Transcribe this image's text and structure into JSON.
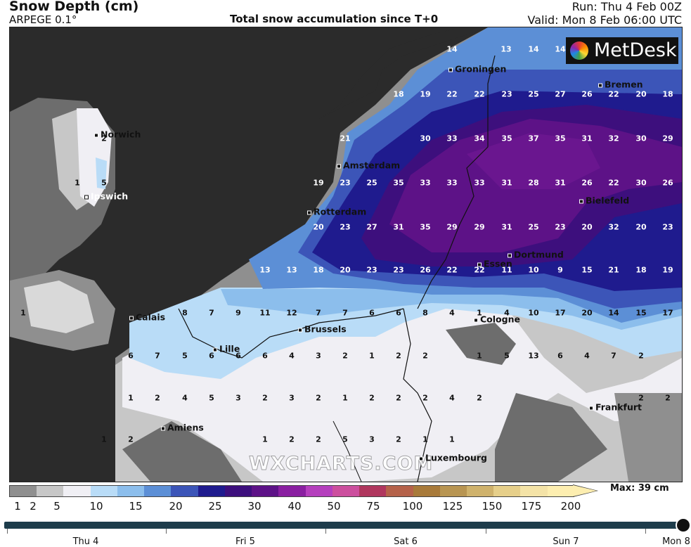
{
  "header": {
    "title": "Snow Depth (cm)",
    "model": "ARPEGE 0.1°",
    "subtitle": "Total snow accumulation since T+0",
    "run": "Run: Thu 4 Feb 00Z",
    "valid": "Valid: Mon 8 Feb 06:00 UTC"
  },
  "logo": {
    "text": "MetDesk",
    "icon": "metdesk-logo-icon"
  },
  "watermark": "WXCHARTS.COM",
  "cities": [
    "Norwich",
    "Ipswich",
    "Groningen",
    "Bremen",
    "Amsterdam",
    "Rotterdam",
    "Bielefeld",
    "Dortmund",
    "Essen",
    "Calais",
    "Brussels",
    "Cologne",
    "Lille",
    "Frankfurt",
    "Amiens",
    "Luxembourg"
  ],
  "values": [
    [
      "14",
      "13",
      "14",
      "14"
    ],
    [
      "18",
      "19",
      "22",
      "22",
      "23",
      "25",
      "27",
      "26",
      "22",
      "20",
      "18"
    ],
    [
      "2",
      "21",
      "30",
      "33",
      "34",
      "35",
      "37",
      "35",
      "31",
      "32",
      "30",
      "29"
    ],
    [
      "1",
      "5",
      "19",
      "23",
      "25",
      "35",
      "33",
      "33",
      "33",
      "31",
      "28",
      "31",
      "26",
      "22",
      "30",
      "26"
    ],
    [
      "20",
      "23",
      "27",
      "31",
      "35",
      "29",
      "29",
      "31",
      "25",
      "23",
      "20",
      "32",
      "20",
      "23"
    ],
    [
      "13",
      "13",
      "18",
      "20",
      "23",
      "23",
      "26",
      "22",
      "22",
      "11",
      "10",
      "9",
      "15",
      "21",
      "18",
      "19"
    ],
    [
      "1",
      "8",
      "7",
      "9",
      "11",
      "12",
      "7",
      "7",
      "6",
      "6",
      "8",
      "4",
      "1",
      "4",
      "10",
      "17",
      "20",
      "14",
      "15",
      "17"
    ],
    [
      "6",
      "7",
      "5",
      "6",
      "6",
      "6",
      "4",
      "3",
      "2",
      "1",
      "2",
      "2",
      "1",
      "5",
      "13",
      "6",
      "4",
      "7",
      "2"
    ],
    [
      "1",
      "2",
      "4",
      "5",
      "3",
      "2",
      "3",
      "2",
      "1",
      "2",
      "2",
      "2",
      "4",
      "2",
      "2",
      "2"
    ],
    [
      "1",
      "2",
      "1",
      "2",
      "2",
      "5",
      "3",
      "2",
      "1",
      "1"
    ]
  ],
  "legend": {
    "ticks": [
      "1",
      "2",
      "5",
      "10",
      "15",
      "20",
      "25",
      "30",
      "40",
      "50",
      "75",
      "100",
      "125",
      "150",
      "175",
      "200"
    ],
    "colors": [
      "#8f8f8f",
      "#c7c7c7",
      "#f0eff4",
      "#b9dcf7",
      "#8cbeec",
      "#5c8fd6",
      "#3c55b8",
      "#1f1b8e",
      "#3d0f7d",
      "#5d1287",
      "#8a1fa1",
      "#b53fbd",
      "#cc4f9e",
      "#b0375e",
      "#b5624a",
      "#a87a3a",
      "#b89552",
      "#cfb26c",
      "#e6cf8a",
      "#f4e3a7",
      "#fdeeb0"
    ],
    "max_label": "Max: 39 cm"
  },
  "timeline": {
    "labels": [
      "Thu 4",
      "Fri 5",
      "Sat 6",
      "Sun 7",
      "Mon 8"
    ],
    "position": 1.0
  }
}
